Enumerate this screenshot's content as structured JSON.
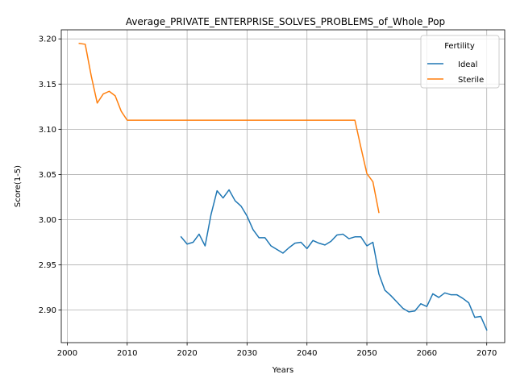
{
  "chart_data": {
    "type": "line",
    "title": "Average_PRIVATE_ENTERPRISE_SOLVES_PROBLEMS_of_Whole_Pop",
    "xlabel": "Years",
    "ylabel": "Score(1-5)",
    "xlim": [
      1999,
      2073
    ],
    "ylim": [
      2.864,
      3.21
    ],
    "xticks": [
      2000,
      2010,
      2020,
      2030,
      2040,
      2050,
      2060,
      2070
    ],
    "yticks": [
      2.9,
      2.95,
      3.0,
      3.05,
      3.1,
      3.15,
      3.2
    ],
    "xtick_labels": [
      "2000",
      "2010",
      "2020",
      "2030",
      "2040",
      "2050",
      "2060",
      "2070"
    ],
    "ytick_labels": [
      "2.90",
      "2.95",
      "3.00",
      "3.05",
      "3.10",
      "3.15",
      "3.20"
    ],
    "grid": true,
    "legend": {
      "title": "Fertility",
      "placement": "top-right"
    },
    "series": [
      {
        "name": "Ideal",
        "color": "#1f77b4",
        "x": [
          2019,
          2020,
          2021,
          2022,
          2023,
          2024,
          2025,
          2026,
          2027,
          2028,
          2029,
          2030,
          2031,
          2032,
          2033,
          2034,
          2035,
          2036,
          2037,
          2038,
          2039,
          2040,
          2041,
          2042,
          2043,
          2044,
          2045,
          2046,
          2047,
          2048,
          2049,
          2050,
          2051,
          2052,
          2053,
          2054,
          2055,
          2056,
          2057,
          2058,
          2059,
          2060,
          2061,
          2062,
          2063,
          2064,
          2065,
          2066,
          2067,
          2068,
          2069,
          2070
        ],
        "y": [
          2.981,
          2.973,
          2.975,
          2.984,
          2.971,
          3.006,
          3.032,
          3.024,
          3.033,
          3.021,
          3.015,
          3.004,
          2.989,
          2.98,
          2.98,
          2.971,
          2.967,
          2.963,
          2.969,
          2.974,
          2.975,
          2.968,
          2.977,
          2.974,
          2.972,
          2.976,
          2.983,
          2.984,
          2.979,
          2.981,
          2.981,
          2.971,
          2.975,
          2.94,
          2.922,
          2.916,
          2.909,
          2.902,
          2.898,
          2.899,
          2.907,
          2.904,
          2.918,
          2.914,
          2.919,
          2.917,
          2.917,
          2.913,
          2.908,
          2.892,
          2.893,
          2.878
        ]
      },
      {
        "name": "Sterile",
        "color": "#ff7f0e",
        "x": [
          2002,
          2003,
          2004,
          2005,
          2006,
          2007,
          2008,
          2009,
          2010,
          2011,
          2012,
          2013,
          2014,
          2015,
          2016,
          2017,
          2018,
          2019,
          2020,
          2021,
          2022,
          2023,
          2024,
          2025,
          2026,
          2027,
          2028,
          2029,
          2030,
          2031,
          2032,
          2033,
          2034,
          2035,
          2036,
          2037,
          2038,
          2039,
          2040,
          2041,
          2042,
          2043,
          2044,
          2045,
          2046,
          2047,
          2048,
          2049,
          2050,
          2051,
          2052
        ],
        "y": [
          3.195,
          3.194,
          3.159,
          3.129,
          3.139,
          3.142,
          3.137,
          3.12,
          3.11,
          3.11,
          3.11,
          3.11,
          3.11,
          3.11,
          3.11,
          3.11,
          3.11,
          3.11,
          3.11,
          3.11,
          3.11,
          3.11,
          3.11,
          3.11,
          3.11,
          3.11,
          3.11,
          3.11,
          3.11,
          3.11,
          3.11,
          3.11,
          3.11,
          3.11,
          3.11,
          3.11,
          3.11,
          3.11,
          3.11,
          3.11,
          3.11,
          3.11,
          3.11,
          3.11,
          3.11,
          3.11,
          3.11,
          3.08,
          3.051,
          3.042,
          3.008
        ]
      }
    ]
  }
}
